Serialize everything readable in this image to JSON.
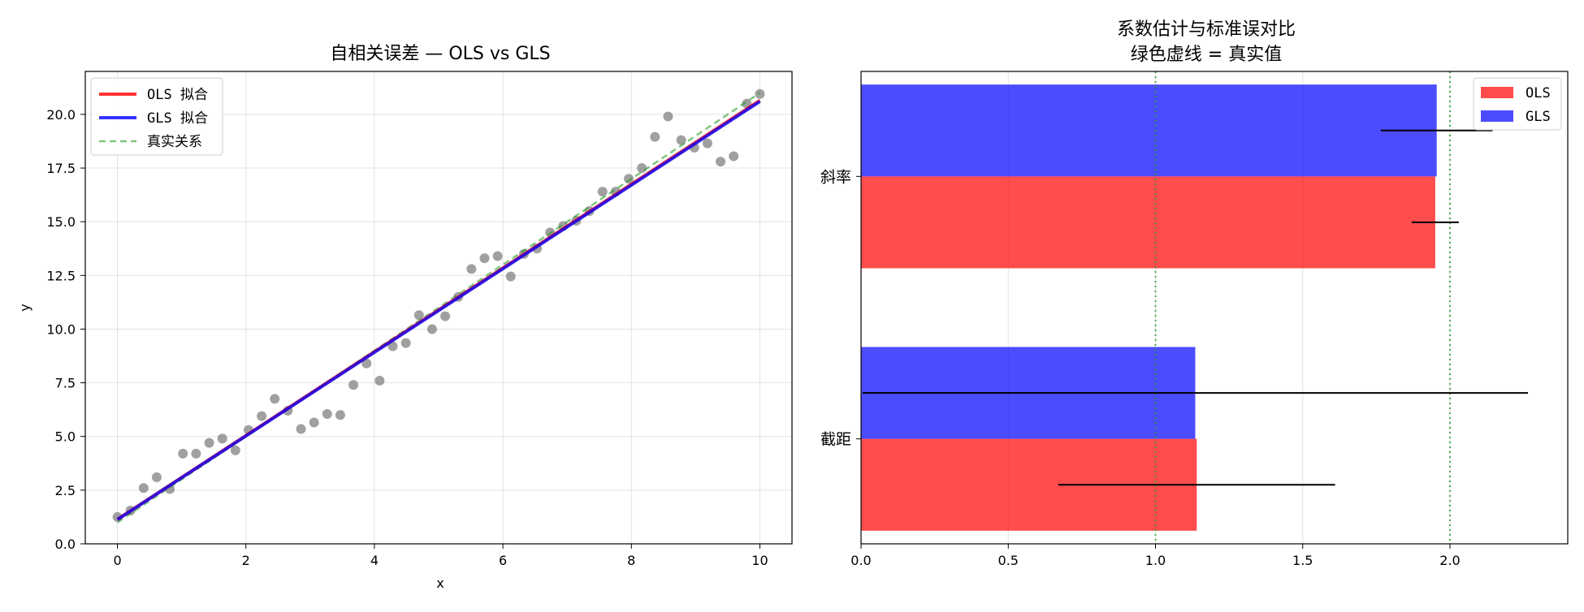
{
  "chart_data": [
    {
      "type": "scatter",
      "title": "自相关误差 — OLS vs GLS",
      "xlabel": "x",
      "ylabel": "y",
      "xlim": [
        -0.5,
        10.5
      ],
      "ylim": [
        0,
        22
      ],
      "xticks": [
        0,
        2,
        4,
        6,
        8,
        10
      ],
      "xtick_labels": [
        "0",
        "2",
        "4",
        "6",
        "8",
        "10"
      ],
      "yticks": [
        0,
        2.5,
        5,
        7.5,
        10,
        12.5,
        15,
        17.5,
        20
      ],
      "ytick_labels": [
        "0.0",
        "2.5",
        "5.0",
        "7.5",
        "10.0",
        "12.5",
        "15.0",
        "17.5",
        "20.0"
      ],
      "grid": true,
      "legend_position": "top-left",
      "points": {
        "color": "#808080",
        "x": [
          0.0,
          0.204,
          0.408,
          0.612,
          0.816,
          1.02,
          1.224,
          1.429,
          1.633,
          1.837,
          2.041,
          2.245,
          2.449,
          2.653,
          2.857,
          3.061,
          3.265,
          3.469,
          3.673,
          3.878,
          4.082,
          4.286,
          4.49,
          4.694,
          4.898,
          5.102,
          5.306,
          5.51,
          5.714,
          5.918,
          6.122,
          6.327,
          6.531,
          6.735,
          6.939,
          7.143,
          7.347,
          7.551,
          7.755,
          7.959,
          8.163,
          8.367,
          8.571,
          8.776,
          8.98,
          9.184,
          9.388,
          9.592,
          9.796,
          10.0
        ],
        "y": [
          1.25,
          1.55,
          2.6,
          3.1,
          2.55,
          4.2,
          4.2,
          4.7,
          4.9,
          4.35,
          5.3,
          5.95,
          6.75,
          6.2,
          5.35,
          5.65,
          6.05,
          6.0,
          7.4,
          8.4,
          7.6,
          9.2,
          9.35,
          10.65,
          10.0,
          10.6,
          11.5,
          12.8,
          13.3,
          13.4,
          12.45,
          13.5,
          13.75,
          14.5,
          14.8,
          15.05,
          15.5,
          16.4,
          16.4,
          17.0,
          17.5,
          18.95,
          19.9,
          18.8,
          18.45,
          18.65,
          17.8,
          18.05,
          20.5,
          20.95
        ]
      },
      "lines": [
        {
          "name": "OLS 拟合",
          "color": "#ff0000",
          "dash": "solid",
          "x": [
            0,
            10
          ],
          "y": [
            1.14,
            20.65
          ]
        },
        {
          "name": "GLS 拟合",
          "color": "#0000ff",
          "dash": "solid",
          "x": [
            0,
            10
          ],
          "y": [
            1.13,
            20.6
          ]
        },
        {
          "name": "真实关系",
          "color": "#2ca02c",
          "dash": "dashed",
          "x": [
            0,
            10
          ],
          "y": [
            1.0,
            21.0
          ]
        }
      ]
    },
    {
      "type": "bar",
      "orientation": "horizontal",
      "title": "系数估计与标准误对比",
      "subtitle": "绿色虚线 = 真实值",
      "categories": [
        "截距",
        "斜率"
      ],
      "xlim": [
        0,
        2.4
      ],
      "xticks": [
        0.0,
        0.5,
        1.0,
        1.5,
        2.0
      ],
      "xtick_labels": [
        "0.0",
        "0.5",
        "1.0",
        "1.5",
        "2.0"
      ],
      "grid": true,
      "legend_position": "top-right",
      "series": [
        {
          "name": "OLS",
          "color": "#ff0000",
          "values": [
            1.14,
            1.95
          ],
          "error": [
            0.47,
            0.08
          ]
        },
        {
          "name": "GLS",
          "color": "#0000ff",
          "values": [
            1.135,
            1.955
          ],
          "error": [
            1.13,
            0.19
          ]
        }
      ],
      "reference_lines": {
        "color": "#2ca02c",
        "x": [
          1.0,
          2.0
        ]
      }
    }
  ]
}
